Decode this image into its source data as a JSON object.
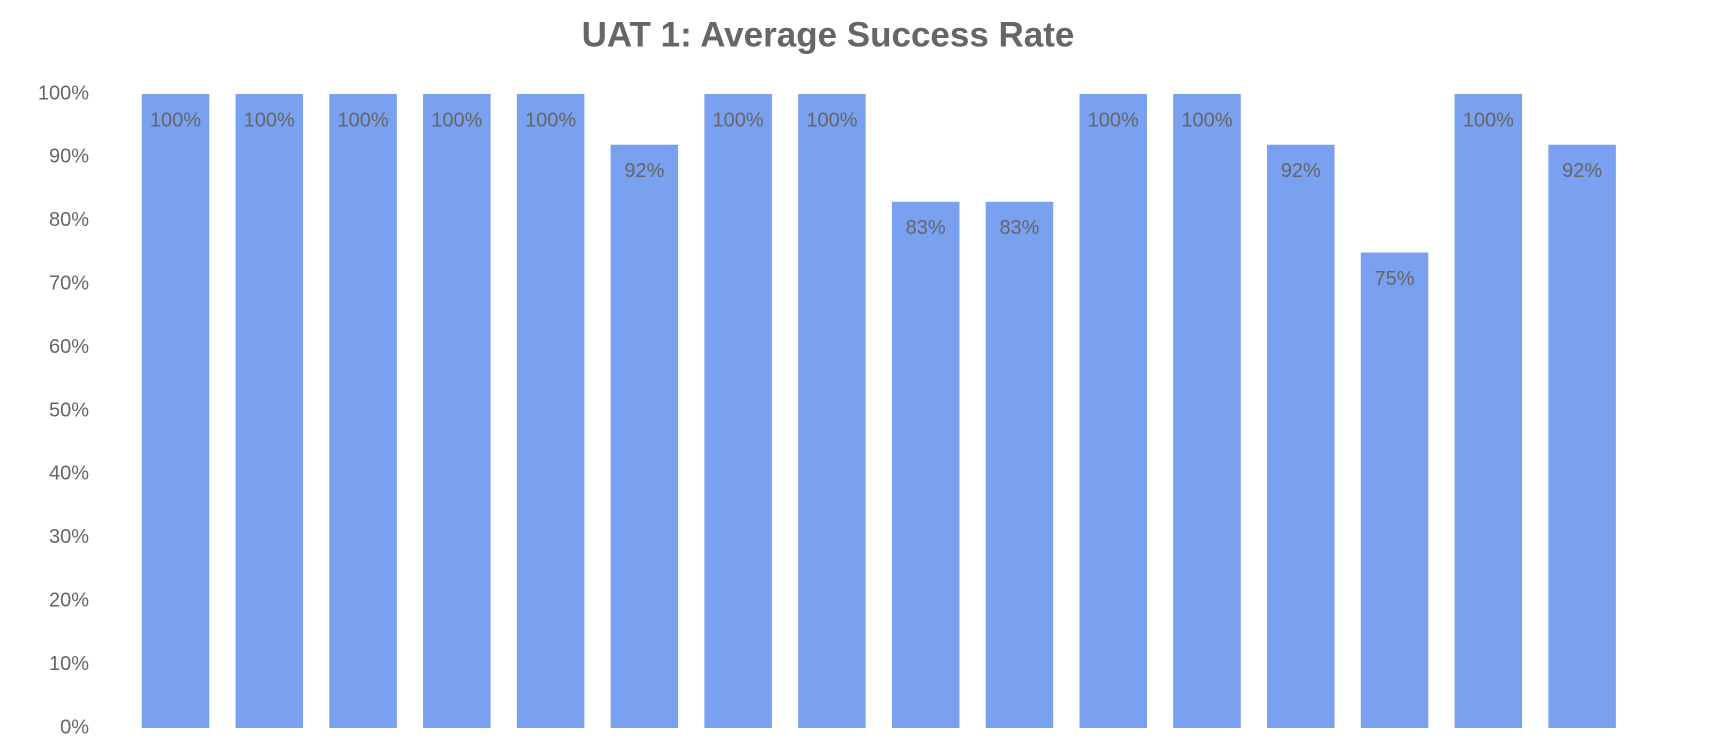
{
  "chart_data": {
    "type": "bar",
    "title": "UAT 1: Average Success Rate",
    "categories": [
      null,
      null,
      null,
      null,
      null,
      null,
      null,
      null,
      null,
      null,
      null,
      null,
      null,
      null,
      null,
      null
    ],
    "values": [
      100,
      100,
      100,
      100,
      100,
      92,
      100,
      100,
      83,
      83,
      100,
      100,
      92,
      75,
      100,
      92
    ],
    "value_labels": [
      "100%",
      "100%",
      "100%",
      "100%",
      "100%",
      "92%",
      "100%",
      "100%",
      "83%",
      "83%",
      "100%",
      "100%",
      "92%",
      "75%",
      "100%",
      "92%"
    ],
    "color": "#7aa0f0",
    "ylim": [
      0,
      100
    ],
    "yticks": [
      {
        "value": 0,
        "label": "0%"
      },
      {
        "value": 10,
        "label": "10%"
      },
      {
        "value": 20,
        "label": "20%"
      },
      {
        "value": 30,
        "label": "30%"
      },
      {
        "value": 40,
        "label": "40%"
      },
      {
        "value": 50,
        "label": "50%"
      },
      {
        "value": 60,
        "label": "60%"
      },
      {
        "value": 70,
        "label": "70%"
      },
      {
        "value": 80,
        "label": "80%"
      },
      {
        "value": 90,
        "label": "90%"
      },
      {
        "value": 100,
        "label": "100%"
      }
    ],
    "grid": false
  }
}
